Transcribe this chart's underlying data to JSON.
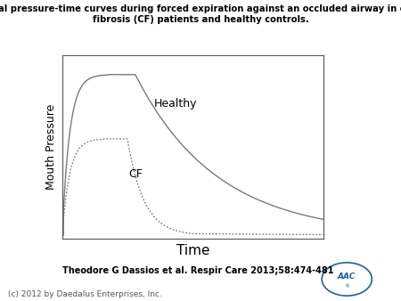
{
  "title_line1": "Typical pressure-time curves during forced expiration against an occluded airway in cystic",
  "title_line2": "fibrosis (CF) patients and healthy controls.",
  "xlabel": "Time",
  "ylabel": "Mouth Pressure",
  "healthy_label": "Healthy",
  "cf_label": "CF",
  "citation": "Theodore G Dassios et al. Respir Care 2013;58:474-481",
  "copyright": "(c) 2012 by Daedalus Enterprises, Inc.",
  "bg_color": "#ffffff",
  "curve_color": "#7a7a7a",
  "title_fontsize": 7.2,
  "xlabel_fontsize": 11,
  "ylabel_fontsize": 9,
  "citation_fontsize": 7.0,
  "copyright_fontsize": 6.5,
  "annotation_fontsize": 9
}
